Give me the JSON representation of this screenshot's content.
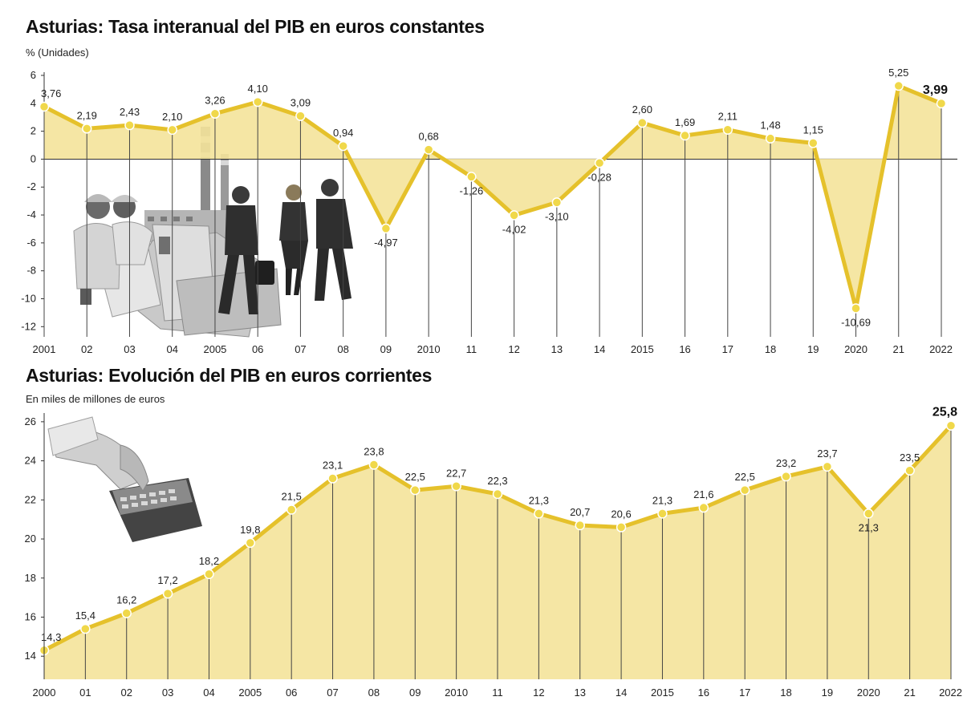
{
  "chart_data": [
    {
      "type": "area",
      "title": "Asturias: Tasa interanual del PIB en euros constantes",
      "ylabel": "% (Unidades)",
      "xlabel": "",
      "categories": [
        "2001",
        "02",
        "03",
        "04",
        "2005",
        "06",
        "07",
        "08",
        "09",
        "2010",
        "11",
        "12",
        "13",
        "14",
        "2015",
        "16",
        "17",
        "18",
        "19",
        "2020",
        "21",
        "2022"
      ],
      "values": [
        3.76,
        2.19,
        2.43,
        2.1,
        3.26,
        4.1,
        3.09,
        0.94,
        -4.97,
        0.68,
        -1.26,
        -4.02,
        -3.1,
        -0.28,
        2.6,
        1.69,
        2.11,
        1.48,
        1.15,
        -10.69,
        5.25,
        3.99
      ],
      "value_labels": [
        "3,76",
        "2,19",
        "2,43",
        "2,10",
        "3,26",
        "4,10",
        "3,09",
        "0,94",
        "-4,97",
        "0,68",
        "-1,26",
        "-4,02",
        "-3,10",
        "-0,28",
        "2,60",
        "1,69",
        "2,11",
        "1,48",
        "1,15",
        "-10,69",
        "5,25",
        "3,99"
      ],
      "y_ticks": [
        "6",
        "4",
        "2",
        "0",
        "-2",
        "-4",
        "-6",
        "-8",
        "-10",
        "-12"
      ],
      "ylim": [
        -12.5,
        6
      ],
      "grid": false,
      "colors": {
        "line": "#e5c12b",
        "fill": "#f4e39a",
        "marker_fill": "#f0d84a",
        "drop_line": "#444444",
        "zero_line": "#444444"
      }
    },
    {
      "type": "area",
      "title": "Asturias: Evolución del PIB en euros corrientes",
      "ylabel": "En miles de millones de euros",
      "xlabel": "",
      "categories": [
        "2000",
        "01",
        "02",
        "03",
        "04",
        "2005",
        "06",
        "07",
        "08",
        "09",
        "2010",
        "11",
        "12",
        "13",
        "14",
        "2015",
        "16",
        "17",
        "18",
        "19",
        "2020",
        "21",
        "2022"
      ],
      "values": [
        14.3,
        15.4,
        16.2,
        17.2,
        18.2,
        19.8,
        21.5,
        23.1,
        23.8,
        22.5,
        22.7,
        22.3,
        21.3,
        20.7,
        20.6,
        21.3,
        21.6,
        22.5,
        23.2,
        23.7,
        21.3,
        23.5,
        25.8
      ],
      "value_labels": [
        "14,3",
        "15,4",
        "16,2",
        "17,2",
        "18,2",
        "19,8",
        "21,5",
        "23,1",
        "23,8",
        "22,5",
        "22,7",
        "22,3",
        "21,3",
        "20,7",
        "20,6",
        "21,3",
        "21,6",
        "22,5",
        "23,2",
        "23,7",
        "21,3",
        "23,5",
        "25,8"
      ],
      "y_ticks": [
        "26",
        "24",
        "22",
        "20",
        "18",
        "16",
        "14"
      ],
      "ylim": [
        12.9,
        26.2
      ],
      "grid": false,
      "colors": {
        "line": "#e5c12b",
        "fill": "#f4e39a",
        "marker_fill": "#f0d84a",
        "drop_line": "#444444"
      }
    }
  ],
  "illustrations": [
    "workers-and-business-people-photo",
    "hand-with-calculator-photo"
  ]
}
